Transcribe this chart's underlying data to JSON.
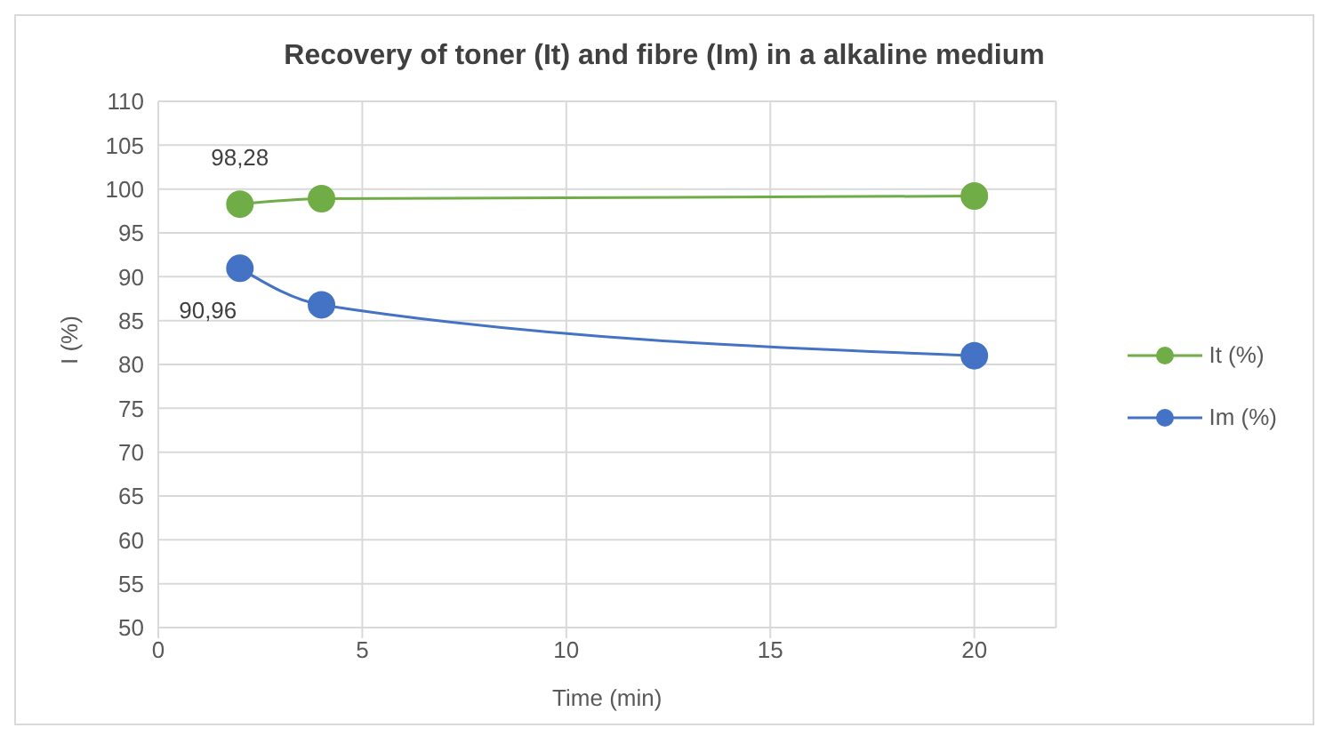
{
  "chart_data": {
    "type": "line",
    "title": "Recovery of toner (It) and fibre (Im) in a alkaline medium",
    "xlabel": "Time (min)",
    "ylabel": "I (%)",
    "x": [
      2,
      4,
      20
    ],
    "series": [
      {
        "name": "It (%)",
        "color": "#70ad47",
        "values": [
          98.28,
          98.9,
          99.2
        ],
        "value_labels": [
          "98,28",
          null,
          null
        ]
      },
      {
        "name": "Im (%)",
        "color": "#4472c4",
        "values": [
          90.96,
          86.8,
          81
        ],
        "value_labels": [
          "90,96",
          null,
          null
        ]
      }
    ],
    "xlim": [
      0,
      22
    ],
    "xticks": [
      0,
      5,
      10,
      15,
      20
    ],
    "ylim": [
      50,
      110
    ],
    "yticks": [
      50,
      55,
      60,
      65,
      70,
      75,
      80,
      85,
      90,
      95,
      100,
      105,
      110
    ],
    "grid": true,
    "legend": "right",
    "marker": "circle",
    "line_style": "solid"
  }
}
